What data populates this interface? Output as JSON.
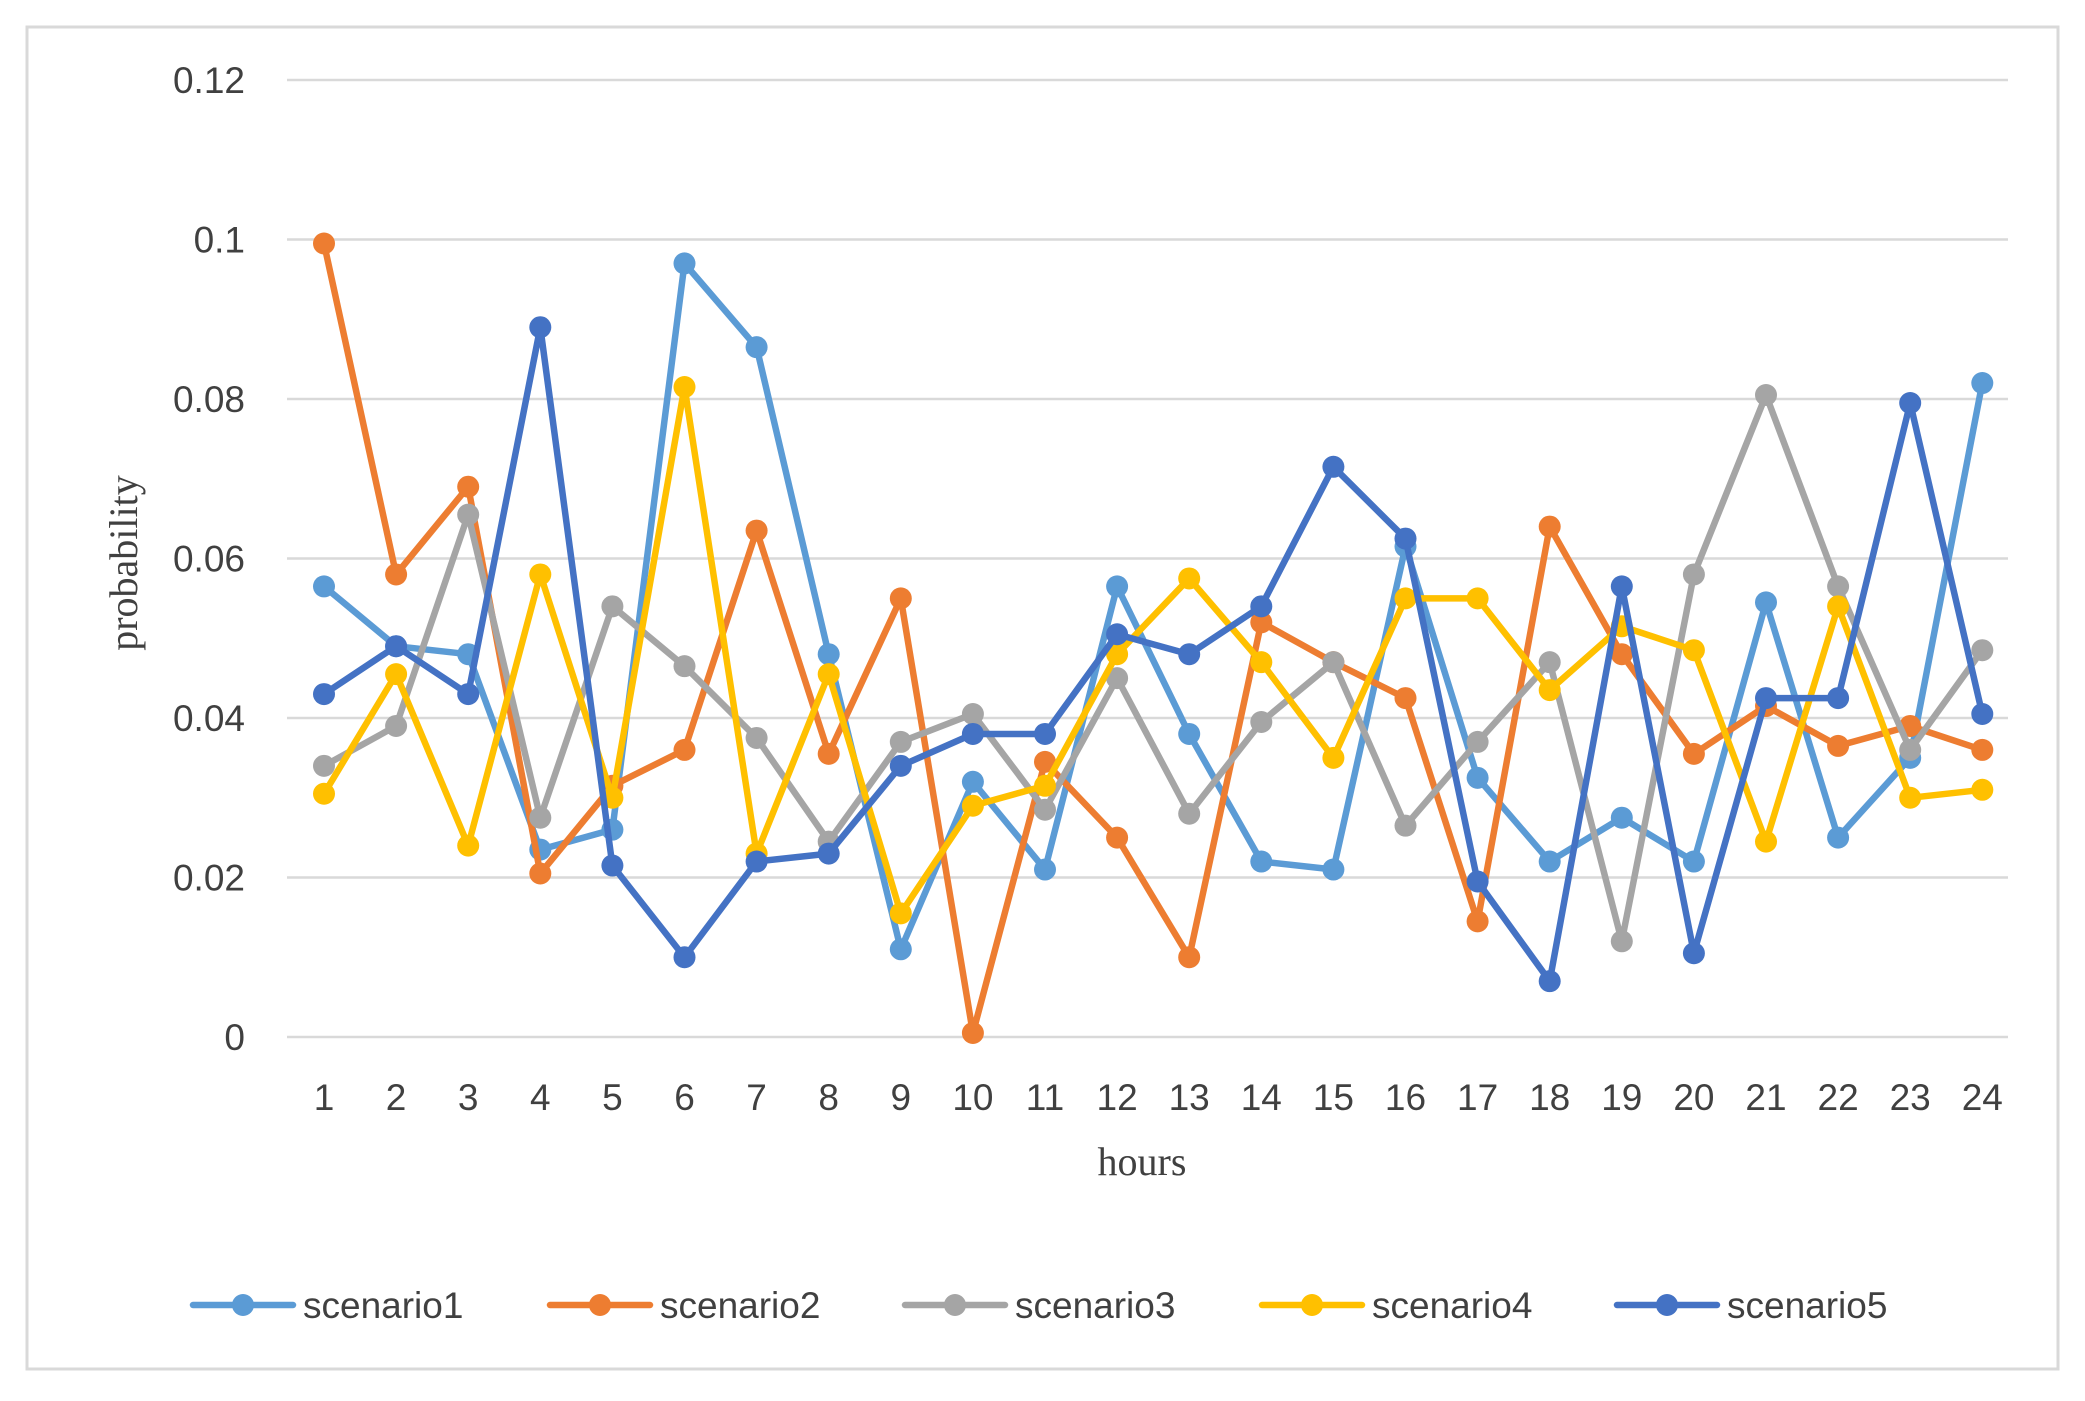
{
  "chart_data": {
    "type": "line",
    "title": "",
    "xlabel": "hours",
    "ylabel": "probability",
    "ylim": [
      0,
      0.12
    ],
    "yticks": [
      "0",
      "0.02",
      "0.04",
      "0.06",
      "0.08",
      "0.1",
      "0.12"
    ],
    "ytick_values": [
      0,
      0.02,
      0.04,
      0.06,
      0.08,
      0.1,
      0.12
    ],
    "categories": [
      "1",
      "2",
      "3",
      "4",
      "5",
      "6",
      "7",
      "8",
      "9",
      "10",
      "11",
      "12",
      "13",
      "14",
      "15",
      "16",
      "17",
      "18",
      "19",
      "20",
      "21",
      "22",
      "23",
      "24"
    ],
    "grid": "horizontal",
    "legend_position": "bottom",
    "series": [
      {
        "name": "scenario1",
        "color": "#5b9bd5",
        "values": [
          0.0565,
          0.049,
          0.048,
          0.0235,
          0.026,
          0.097,
          0.0865,
          0.048,
          0.011,
          0.032,
          0.021,
          0.0565,
          0.038,
          0.022,
          0.021,
          0.0615,
          0.0325,
          0.022,
          0.0275,
          0.022,
          0.0545,
          0.025,
          0.035,
          0.082
        ]
      },
      {
        "name": "scenario2",
        "color": "#ed7d31",
        "values": [
          0.0995,
          0.058,
          0.069,
          0.0205,
          0.0315,
          0.036,
          0.0635,
          0.0355,
          0.055,
          0.0005,
          0.0345,
          0.025,
          0.01,
          0.052,
          0.047,
          0.0425,
          0.0145,
          0.064,
          0.048,
          0.0355,
          0.0415,
          0.0365,
          0.039,
          0.036
        ]
      },
      {
        "name": "scenario3",
        "color": "#a5a5a5",
        "values": [
          0.034,
          0.039,
          0.0655,
          0.0275,
          0.054,
          0.0465,
          0.0375,
          0.0245,
          0.037,
          0.0405,
          0.0285,
          0.045,
          0.028,
          0.0395,
          0.047,
          0.0265,
          0.037,
          0.047,
          0.012,
          0.058,
          0.0805,
          0.0565,
          0.036,
          0.0485
        ]
      },
      {
        "name": "scenario4",
        "color": "#ffc000",
        "values": [
          0.0305,
          0.0455,
          0.024,
          0.058,
          0.03,
          0.0815,
          0.023,
          0.0455,
          0.0155,
          0.029,
          0.0315,
          0.048,
          0.0575,
          0.047,
          0.035,
          0.055,
          0.055,
          0.0435,
          0.0515,
          0.0485,
          0.0245,
          0.054,
          0.03,
          0.031
        ]
      },
      {
        "name": "scenario5",
        "color": "#4472c4",
        "values": [
          0.043,
          0.049,
          0.043,
          0.089,
          0.0215,
          0.01,
          0.022,
          0.023,
          0.034,
          0.038,
          0.038,
          0.0505,
          0.048,
          0.054,
          0.0715,
          0.0625,
          0.0195,
          0.007,
          0.0565,
          0.0105,
          0.0425,
          0.0425,
          0.0795,
          0.0405
        ]
      }
    ]
  },
  "colors": {
    "grid": "#d9d9d9",
    "frame": "#d9d9d9",
    "text": "#404040",
    "background": "#ffffff"
  }
}
